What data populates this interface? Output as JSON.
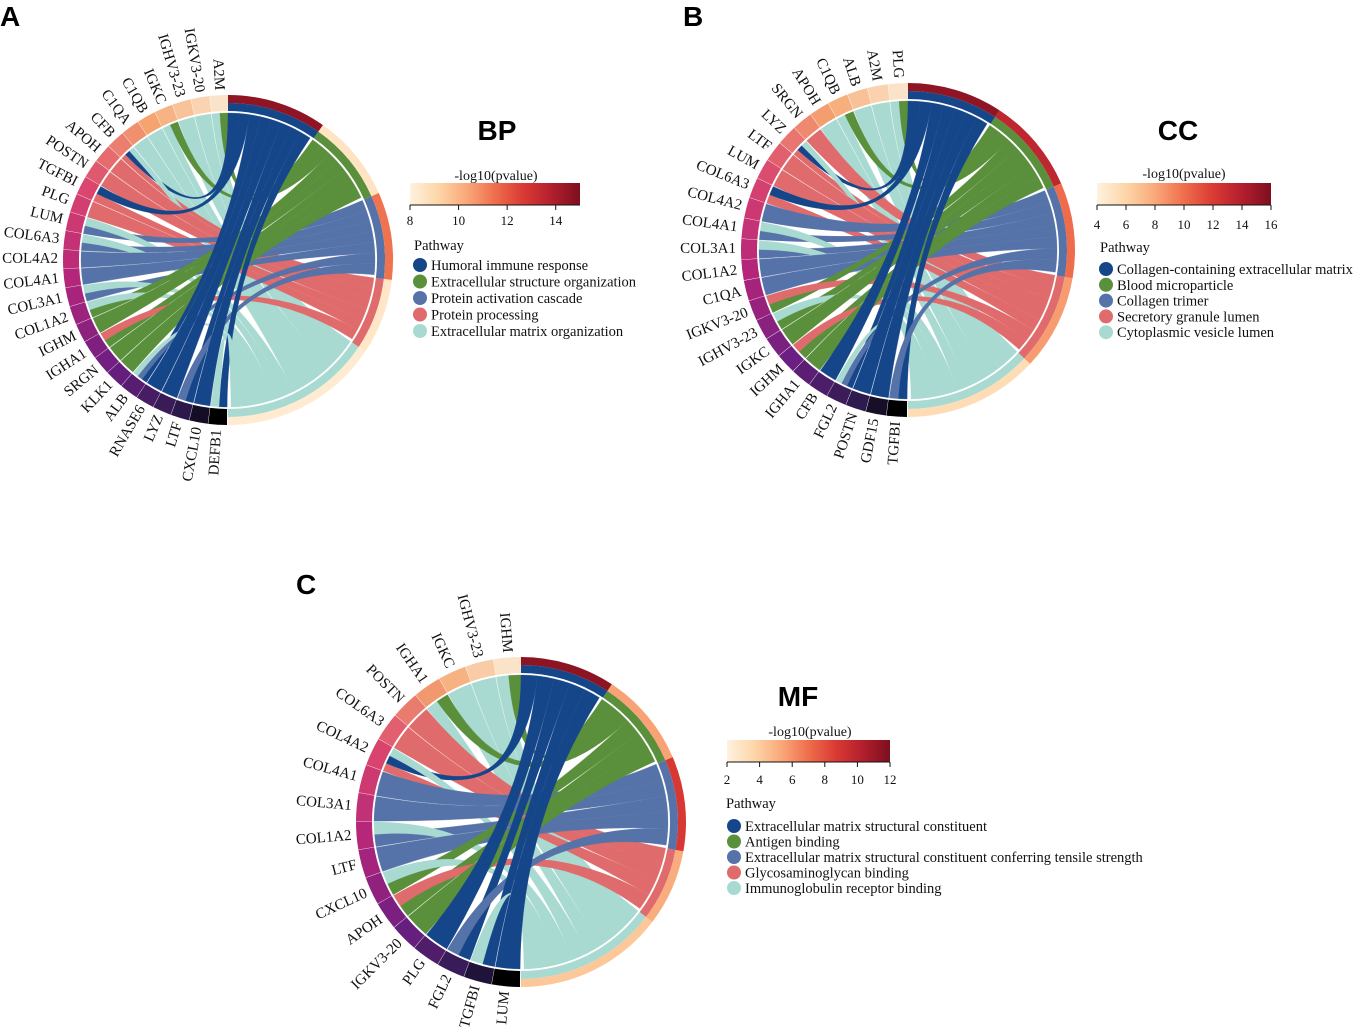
{
  "chart_data": [
    {
      "type": "chord",
      "panel": "A",
      "title": "BP",
      "scale_title": "-log10(pvalue)",
      "scale_ticks": [
        "8",
        "10",
        "12",
        "14"
      ],
      "scale_range": [
        8,
        15
      ],
      "legend_title": "Pathway",
      "pathways": [
        {
          "name": "Humoral immune response",
          "color": "#16468a",
          "pvalue": 14.6
        },
        {
          "name": "Extracellular structure organization",
          "color": "#5a8f3c",
          "pvalue": 8.6
        },
        {
          "name": "Protein activation cascade",
          "color": "#5573a8",
          "pvalue": 11.4
        },
        {
          "name": "Protein processing",
          "color": "#e06b6c",
          "pvalue": 8.5
        },
        {
          "name": "Extracellular matrix organization",
          "color": "#a8dad2",
          "pvalue": 8.3
        }
      ],
      "genes": [
        "A2M",
        "IGKV3-20",
        "IGHV3-23",
        "IGKC",
        "C1QB",
        "C1QA",
        "CFB",
        "APOH",
        "POSTN",
        "TGFBI",
        "PLG",
        "LUM",
        "COL6A3",
        "COL4A2",
        "COL4A1",
        "COL3A1",
        "COL1A2",
        "IGHM",
        "IGHA1",
        "SRGN",
        "KLK1",
        "ALB",
        "RNASE6",
        "LYZ",
        "LTF",
        "CXCL10",
        "DEFB1"
      ]
    },
    {
      "type": "chord",
      "panel": "B",
      "title": "CC",
      "scale_title": "-log10(pvalue)",
      "scale_ticks": [
        "4",
        "6",
        "8",
        "10",
        "12",
        "14",
        "16"
      ],
      "scale_range": [
        4,
        16
      ],
      "legend_title": "Pathway",
      "pathways": [
        {
          "name": "Collagen-containing extracellular matrix",
          "color": "#16468a",
          "pvalue": 15.3
        },
        {
          "name": "Blood microparticle",
          "color": "#5a8f3c",
          "pvalue": 13.4
        },
        {
          "name": "Collagen trimer",
          "color": "#5573a8",
          "pvalue": 10.1
        },
        {
          "name": "Secretory granule lumen",
          "color": "#e06b6c",
          "pvalue": 8.4
        },
        {
          "name": "Cytoplasmic vesicle lumen",
          "color": "#a8dad2",
          "pvalue": 5.5
        }
      ],
      "genes": [
        "PLG",
        "A2M",
        "ALB",
        "C1QB",
        "APOH",
        "SRGN",
        "LYZ",
        "LTF",
        "LUM",
        "COL6A3",
        "COL4A2",
        "COL4A1",
        "COL3A1",
        "COL1A2",
        "C1QA",
        "IGKV3-20",
        "IGHV3-23",
        "IGKC",
        "IGHM",
        "IGHA1",
        "CFB",
        "FGL2",
        "POSTN",
        "GDF15",
        "TGFBI"
      ]
    },
    {
      "type": "chord",
      "panel": "C",
      "title": "MF",
      "scale_title": "-log10(pvalue)",
      "scale_ticks": [
        "2",
        "4",
        "6",
        "8",
        "10",
        "12"
      ],
      "scale_range": [
        2,
        12
      ],
      "legend_title": "Pathway",
      "pathways": [
        {
          "name": "Extracellular matrix structural constituent",
          "color": "#16468a",
          "pvalue": 11.5
        },
        {
          "name": "Antigen binding",
          "color": "#5a8f3c",
          "pvalue": 5.5
        },
        {
          "name": "Extracellular matrix structural constituent conferring tensile strength",
          "color": "#5573a8",
          "pvalue": 8.8
        },
        {
          "name": "Glycosaminoglycan binding",
          "color": "#e06b6c",
          "pvalue": 5.2
        },
        {
          "name": "Immunoglobulin receptor binding",
          "color": "#a8dad2",
          "pvalue": 4.2
        }
      ],
      "genes": [
        "IGHM",
        "IGHV3-23",
        "IGKC",
        "IGHA1",
        "POSTN",
        "COL6A3",
        "COL4A2",
        "COL4A1",
        "COL3A1",
        "COL1A2",
        "LTF",
        "CXCL10",
        "APOH",
        "IGKV3-20",
        "PLG",
        "FGL2",
        "TGFBI",
        "LUM"
      ]
    }
  ]
}
